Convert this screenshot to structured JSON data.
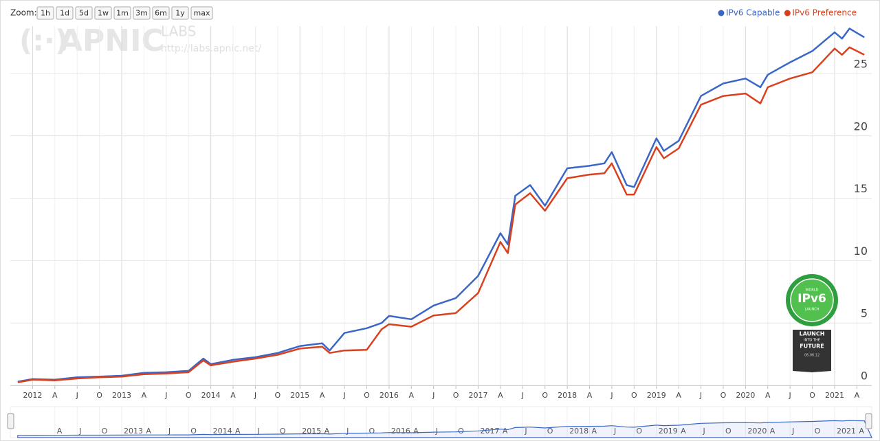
{
  "zoom": {
    "label": "Zoom:",
    "buttons": [
      "1h",
      "1d",
      "5d",
      "1w",
      "1m",
      "3m",
      "6m",
      "1y",
      "max"
    ]
  },
  "watermark": {
    "brand": "APNIC",
    "suffix": "LABS",
    "url": "http://labs.apnic.net/"
  },
  "badge": {
    "top": "WORLD",
    "name": "IPv6",
    "bottom": "LAUNCH",
    "slogan": [
      "LAUNCH",
      "INTO THE",
      "FUTURE"
    ],
    "date": "06.06.12"
  },
  "chart_data": {
    "type": "line",
    "x": [
      "2011-11",
      "2012-01",
      "2012-04",
      "2012-07",
      "2012-10",
      "2013-01",
      "2013-04",
      "2013-07",
      "2013-10",
      "2013-12",
      "2014-01",
      "2014-04",
      "2014-07",
      "2014-10",
      "2015-01",
      "2015-04",
      "2015-05",
      "2015-07",
      "2015-10",
      "2015-12",
      "2016-01",
      "2016-04",
      "2016-07",
      "2016-10",
      "2017-01",
      "2017-04",
      "2017-05",
      "2017-06",
      "2017-08",
      "2017-10",
      "2018-01",
      "2018-04",
      "2018-06",
      "2018-07",
      "2018-09",
      "2018-10",
      "2019-01",
      "2019-02",
      "2019-04",
      "2019-07",
      "2019-10",
      "2020-01",
      "2020-03",
      "2020-04",
      "2020-07",
      "2020-10",
      "2021-01",
      "2021-02",
      "2021-03",
      "2021-05"
    ],
    "series": [
      {
        "name": "IPv6 Capable",
        "color": "#3a66c8",
        "values": [
          0.3,
          0.5,
          0.45,
          0.65,
          0.7,
          0.77,
          1.0,
          1.05,
          1.16,
          2.15,
          1.7,
          2.05,
          2.26,
          2.6,
          3.15,
          3.37,
          2.8,
          4.2,
          4.58,
          5.0,
          5.57,
          5.3,
          6.4,
          7.0,
          8.78,
          12.2,
          11.3,
          15.2,
          16.06,
          14.4,
          17.4,
          17.6,
          17.8,
          18.7,
          16.06,
          15.9,
          19.8,
          18.8,
          19.6,
          23.2,
          24.2,
          24.6,
          23.9,
          24.9,
          25.9,
          26.8,
          28.3,
          27.8,
          28.6,
          27.9
        ]
      },
      {
        "name": "IPv6 Preference",
        "color": "#d9411e",
        "values": [
          0.25,
          0.45,
          0.4,
          0.55,
          0.65,
          0.7,
          0.9,
          0.95,
          1.05,
          2.0,
          1.6,
          1.9,
          2.15,
          2.45,
          2.95,
          3.1,
          2.6,
          2.8,
          2.85,
          4.5,
          4.9,
          4.7,
          5.6,
          5.8,
          7.4,
          11.5,
          10.6,
          14.5,
          15.4,
          14.0,
          16.6,
          16.9,
          17.0,
          17.8,
          15.3,
          15.3,
          19.1,
          18.2,
          19.0,
          22.5,
          23.2,
          23.4,
          22.6,
          23.9,
          24.6,
          25.1,
          27.0,
          26.5,
          27.1,
          26.5
        ]
      }
    ],
    "xlim": [
      "2011-10",
      "2021-06"
    ],
    "xticks": [
      {
        "value": "2012-01",
        "label": "2012"
      },
      {
        "value": "2012-04",
        "label": "A"
      },
      {
        "value": "2012-07",
        "label": "J"
      },
      {
        "value": "2012-10",
        "label": "O"
      },
      {
        "value": "2013-01",
        "label": "2013"
      },
      {
        "value": "2013-04",
        "label": "A"
      },
      {
        "value": "2013-07",
        "label": "J"
      },
      {
        "value": "2013-10",
        "label": "O"
      },
      {
        "value": "2014-01",
        "label": "2014"
      },
      {
        "value": "2014-04",
        "label": "A"
      },
      {
        "value": "2014-07",
        "label": "J"
      },
      {
        "value": "2014-10",
        "label": "O"
      },
      {
        "value": "2015-01",
        "label": "2015"
      },
      {
        "value": "2015-04",
        "label": "A"
      },
      {
        "value": "2015-07",
        "label": "J"
      },
      {
        "value": "2015-10",
        "label": "O"
      },
      {
        "value": "2016-01",
        "label": "2016"
      },
      {
        "value": "2016-04",
        "label": "A"
      },
      {
        "value": "2016-07",
        "label": "J"
      },
      {
        "value": "2016-10",
        "label": "O"
      },
      {
        "value": "2017-01",
        "label": "2017"
      },
      {
        "value": "2017-04",
        "label": "A"
      },
      {
        "value": "2017-07",
        "label": "J"
      },
      {
        "value": "2017-10",
        "label": "O"
      },
      {
        "value": "2018-01",
        "label": "2018"
      },
      {
        "value": "2018-04",
        "label": "A"
      },
      {
        "value": "2018-07",
        "label": "J"
      },
      {
        "value": "2018-10",
        "label": "O"
      },
      {
        "value": "2019-01",
        "label": "2019"
      },
      {
        "value": "2019-04",
        "label": "A"
      },
      {
        "value": "2019-07",
        "label": "J"
      },
      {
        "value": "2019-10",
        "label": "O"
      },
      {
        "value": "2020-01",
        "label": "2020"
      },
      {
        "value": "2020-04",
        "label": "A"
      },
      {
        "value": "2020-07",
        "label": "J"
      },
      {
        "value": "2020-10",
        "label": "O"
      },
      {
        "value": "2021-01",
        "label": "2021"
      },
      {
        "value": "2021-04",
        "label": "A"
      }
    ],
    "navigator_xticks": [
      {
        "value": "2012-04",
        "label": "A"
      },
      {
        "value": "2012-07",
        "label": "J"
      },
      {
        "value": "2012-10",
        "label": "O"
      },
      {
        "value": "2013-01",
        "label": "2013"
      },
      {
        "value": "2013-04",
        "label": "A"
      },
      {
        "value": "2013-07",
        "label": "J"
      },
      {
        "value": "2013-10",
        "label": "O"
      },
      {
        "value": "2014-01",
        "label": "2014"
      },
      {
        "value": "2014-04",
        "label": "A"
      },
      {
        "value": "2014-07",
        "label": "J"
      },
      {
        "value": "2014-10",
        "label": "O"
      },
      {
        "value": "2015-01",
        "label": "2015"
      },
      {
        "value": "2015-04",
        "label": "A"
      },
      {
        "value": "2015-07",
        "label": "J"
      },
      {
        "value": "2015-10",
        "label": "O"
      },
      {
        "value": "2016-01",
        "label": "2016"
      },
      {
        "value": "2016-04",
        "label": "A"
      },
      {
        "value": "2016-07",
        "label": "J"
      },
      {
        "value": "2016-10",
        "label": "O"
      },
      {
        "value": "2017-01",
        "label": "2017"
      },
      {
        "value": "2017-04",
        "label": "A"
      },
      {
        "value": "2017-07",
        "label": "J"
      },
      {
        "value": "2017-10",
        "label": "O"
      },
      {
        "value": "2018-01",
        "label": "2018"
      },
      {
        "value": "2018-04",
        "label": "A"
      },
      {
        "value": "2018-07",
        "label": "J"
      },
      {
        "value": "2018-10",
        "label": "O"
      },
      {
        "value": "2019-01",
        "label": "2019"
      },
      {
        "value": "2019-04",
        "label": "A"
      },
      {
        "value": "2019-07",
        "label": "J"
      },
      {
        "value": "2019-10",
        "label": "O"
      },
      {
        "value": "2020-01",
        "label": "2020"
      },
      {
        "value": "2020-04",
        "label": "A"
      },
      {
        "value": "2020-07",
        "label": "J"
      },
      {
        "value": "2020-10",
        "label": "O"
      },
      {
        "value": "2021-01",
        "label": "2021"
      },
      {
        "value": "2021-04",
        "label": "A"
      }
    ],
    "ylim": [
      0,
      28.8
    ],
    "yticks": [
      0,
      5,
      10,
      15,
      20,
      25
    ],
    "grid": true,
    "legend": "top-right"
  }
}
